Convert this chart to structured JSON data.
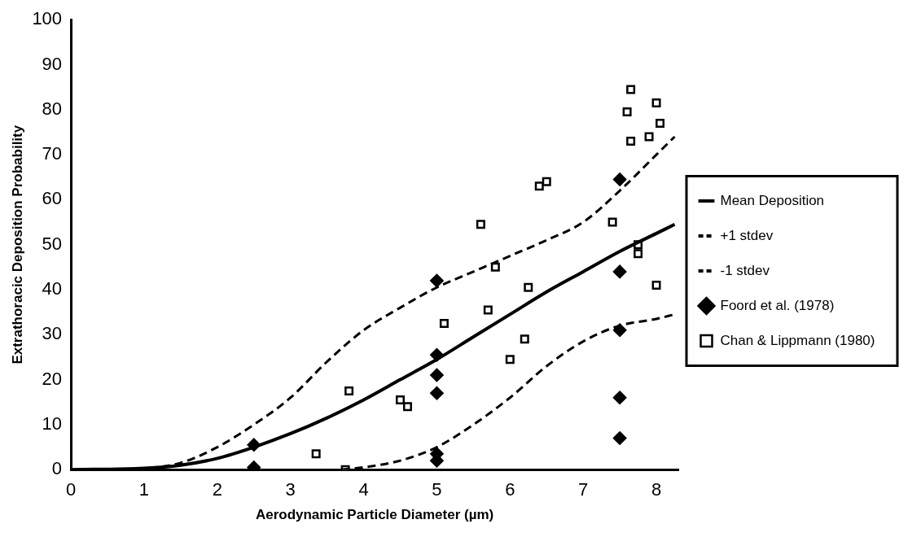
{
  "chart_data": {
    "type": "line",
    "xlabel": "Aerodynamic Particle Diameter (µm)",
    "ylabel": "Extrathoracic Deposition Probability",
    "xlim": [
      0,
      8.3
    ],
    "ylim": [
      0,
      100
    ],
    "xticks": [
      0,
      1,
      2,
      3,
      4,
      5,
      6,
      7,
      8
    ],
    "yticks": [
      0,
      10,
      20,
      30,
      40,
      50,
      60,
      70,
      80,
      90,
      100
    ],
    "grid": false,
    "legend": "right",
    "series": [
      {
        "name": "Mean Deposition",
        "type": "line",
        "line_style": "solid",
        "marker": "none",
        "color": "#000000",
        "x": [
          0,
          1,
          1.5,
          2,
          2.5,
          3,
          3.5,
          4,
          4.5,
          5,
          5.5,
          6,
          6.5,
          7,
          7.5,
          8,
          8.25
        ],
        "values": [
          0,
          0.3,
          1,
          2.5,
          5,
          8,
          11.5,
          15.5,
          20,
          24.5,
          29.5,
          34.5,
          39.5,
          44,
          48.5,
          52.5,
          54.5
        ]
      },
      {
        "name": "+1 stdev",
        "type": "line",
        "line_style": "dashed",
        "marker": "none",
        "color": "#000000",
        "x": [
          0,
          1,
          1.5,
          2,
          2.5,
          3,
          3.5,
          4,
          4.5,
          5,
          5.5,
          6,
          6.5,
          7,
          7.5,
          8,
          8.25
        ],
        "values": [
          0,
          0.3,
          1.5,
          5,
          10,
          16,
          24,
          31,
          36,
          40.5,
          44,
          47.5,
          51,
          55,
          62,
          70,
          74
        ]
      },
      {
        "name": "-1 stdev",
        "type": "line",
        "line_style": "dashed",
        "marker": "none",
        "color": "#000000",
        "x": [
          3.7,
          4,
          4.5,
          5,
          5.5,
          6,
          6.5,
          7,
          7.5,
          8,
          8.25
        ],
        "values": [
          0,
          0.5,
          2,
          5,
          10,
          16,
          23,
          28.5,
          32,
          33.5,
          34.5
        ]
      },
      {
        "name": "Foord et al. (1978)",
        "type": "scatter",
        "marker": "diamond",
        "color": "#000000",
        "x": [
          2.5,
          2.5,
          5,
          5,
          5,
          5,
          5,
          5,
          7.5,
          7.5,
          7.5,
          7.5,
          7.5
        ],
        "values": [
          5.5,
          0.5,
          42,
          25.5,
          21,
          17,
          3.5,
          2,
          64.5,
          44,
          31,
          16,
          7
        ]
      },
      {
        "name": "Chan & Lippmann (1980)",
        "type": "scatter",
        "marker": "square",
        "color": "#000000",
        "x": [
          3.35,
          3.75,
          3.8,
          4.5,
          4.6,
          5.1,
          5.6,
          5.7,
          5.8,
          6,
          6.2,
          6.25,
          6.4,
          6.5,
          7.4,
          7.65,
          7.6,
          7.65,
          7.75,
          7.75,
          7.9,
          8,
          8.05,
          8
        ],
        "values": [
          3.5,
          0,
          17.5,
          15.5,
          14,
          32.5,
          54.5,
          35.5,
          45,
          24.5,
          29,
          40.5,
          63,
          64,
          55,
          73,
          79.5,
          84.5,
          50,
          48,
          74,
          81.5,
          77,
          41
        ]
      }
    ]
  }
}
